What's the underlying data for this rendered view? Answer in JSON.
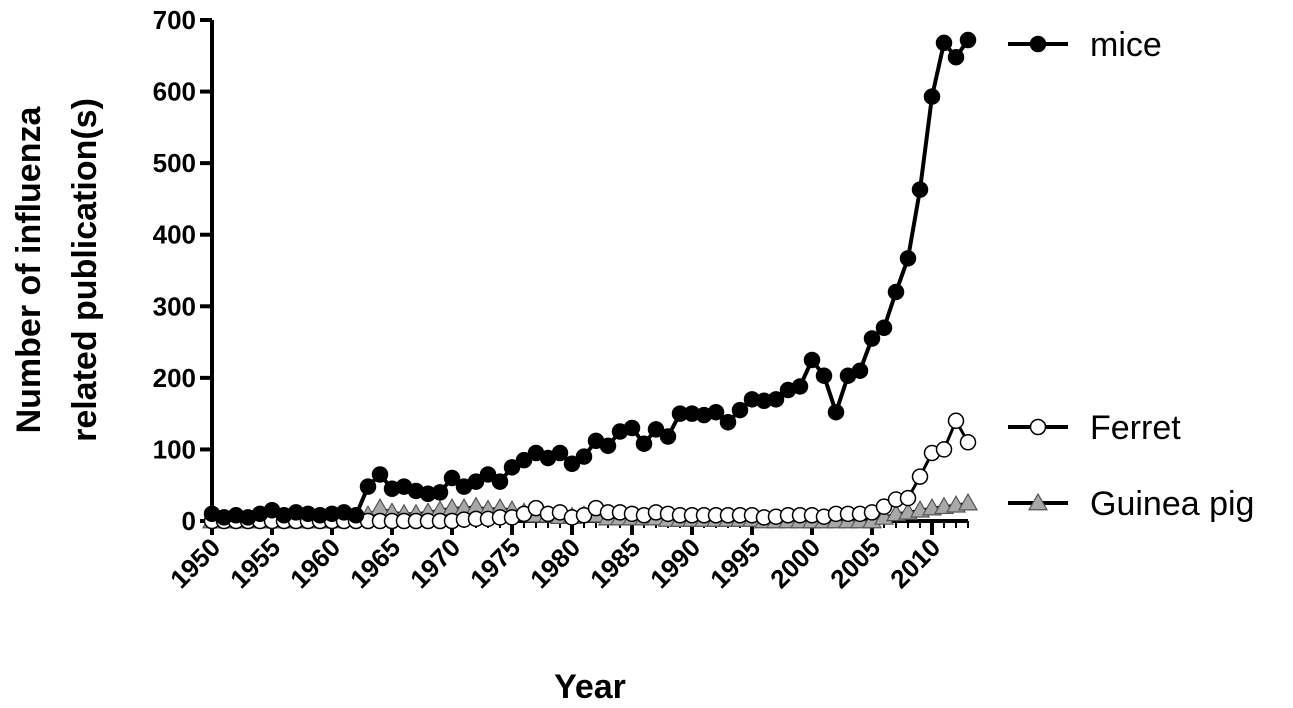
{
  "chart_data": {
    "type": "line",
    "xlabel": "Year",
    "ylabel": [
      "Number of influenza",
      "related publication(s)"
    ],
    "xlim": [
      1950,
      2013
    ],
    "ylim": [
      0,
      700
    ],
    "x_ticks": [
      "1950",
      "1955",
      "1960",
      "1965",
      "1970",
      "1975",
      "1980",
      "1985",
      "1990",
      "1995",
      "2000",
      "2005",
      "2010"
    ],
    "y_ticks": [
      "0",
      "100",
      "200",
      "300",
      "400",
      "500",
      "600",
      "700"
    ],
    "legend_position": "right",
    "x": [
      1950,
      1951,
      1952,
      1953,
      1954,
      1955,
      1956,
      1957,
      1958,
      1959,
      1960,
      1961,
      1962,
      1963,
      1964,
      1965,
      1966,
      1967,
      1968,
      1969,
      1970,
      1971,
      1972,
      1973,
      1974,
      1975,
      1976,
      1977,
      1978,
      1979,
      1980,
      1981,
      1982,
      1983,
      1984,
      1985,
      1986,
      1987,
      1988,
      1989,
      1990,
      1991,
      1992,
      1993,
      1994,
      1995,
      1996,
      1997,
      1998,
      1999,
      2000,
      2001,
      2002,
      2003,
      2004,
      2005,
      2006,
      2007,
      2008,
      2009,
      2010,
      2011,
      2012,
      2013
    ],
    "series": [
      {
        "name": "mice",
        "marker": "filled-circle",
        "color": "#000000",
        "values": [
          10,
          5,
          8,
          5,
          10,
          15,
          8,
          12,
          10,
          8,
          10,
          12,
          8,
          48,
          65,
          45,
          48,
          42,
          38,
          40,
          60,
          48,
          55,
          65,
          55,
          75,
          85,
          95,
          88,
          95,
          80,
          90,
          112,
          105,
          125,
          130,
          108,
          128,
          118,
          150,
          150,
          148,
          152,
          138,
          155,
          170,
          168,
          170,
          183,
          188,
          225,
          203,
          152,
          203,
          210,
          255,
          270,
          320,
          367,
          463,
          593,
          668,
          648,
          672
        ]
      },
      {
        "name": "Ferret",
        "marker": "open-circle",
        "color": "#000000",
        "values": [
          0,
          0,
          0,
          0,
          0,
          0,
          0,
          0,
          0,
          0,
          0,
          0,
          0,
          0,
          0,
          0,
          0,
          0,
          0,
          0,
          0,
          2,
          3,
          3,
          5,
          5,
          10,
          18,
          10,
          12,
          5,
          8,
          18,
          12,
          12,
          10,
          8,
          12,
          10,
          8,
          8,
          8,
          8,
          8,
          8,
          8,
          5,
          6,
          8,
          8,
          8,
          6,
          10,
          10,
          10,
          12,
          20,
          30,
          32,
          62,
          95,
          100,
          140,
          110
        ]
      },
      {
        "name": "Guinea pig",
        "marker": "triangle",
        "color": "#a8a8a8",
        "values": [
          0,
          0,
          0,
          0,
          0,
          0,
          0,
          0,
          0,
          0,
          0,
          2,
          4,
          8,
          18,
          12,
          10,
          10,
          12,
          15,
          18,
          18,
          20,
          16,
          18,
          15,
          12,
          8,
          8,
          6,
          6,
          8,
          8,
          4,
          4,
          4,
          4,
          4,
          2,
          2,
          2,
          2,
          2,
          2,
          2,
          2,
          0,
          0,
          0,
          0,
          0,
          0,
          0,
          0,
          0,
          0,
          5,
          10,
          12,
          15,
          18,
          20,
          22,
          25
        ]
      }
    ]
  }
}
